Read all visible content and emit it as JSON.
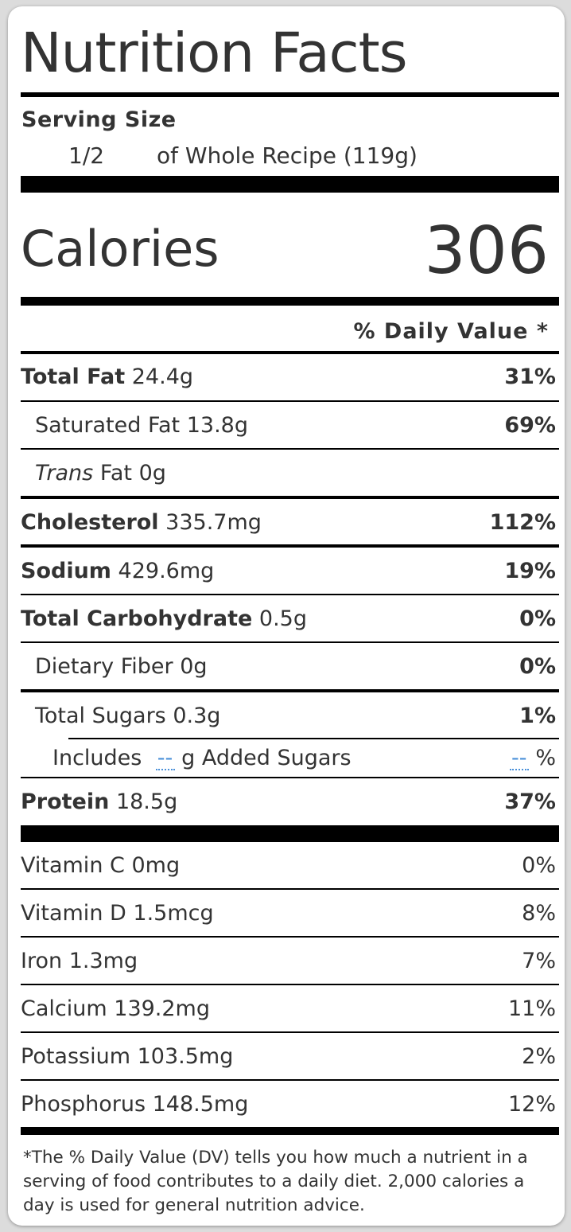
{
  "title": "Nutrition Facts",
  "serving": {
    "label": "Serving Size",
    "quantity": "1/2",
    "unit": "of Whole Recipe (119g)"
  },
  "calories": {
    "label": "Calories",
    "value": "306"
  },
  "dv_header": "% Daily Value *",
  "nutrients": {
    "total_fat": {
      "name": "Total Fat",
      "amount": "24.4g",
      "dv": "31%"
    },
    "saturated_fat": {
      "name": "Saturated Fat",
      "amount": "13.8g",
      "dv": "69%"
    },
    "trans_fat": {
      "name_italic": "Trans",
      "name": "Fat",
      "amount": "0g"
    },
    "cholesterol": {
      "name": "Cholesterol",
      "amount": "335.7mg",
      "dv": "112%"
    },
    "sodium": {
      "name": "Sodium",
      "amount": "429.6mg",
      "dv": "19%"
    },
    "total_carbohydrate": {
      "name": "Total Carbohydrate",
      "amount": "0.5g",
      "dv": "0%"
    },
    "dietary_fiber": {
      "name": "Dietary Fiber",
      "amount": "0g",
      "dv": "0%"
    },
    "total_sugars": {
      "name": "Total Sugars",
      "amount": "0.3g",
      "dv": "1%"
    },
    "added_sugars": {
      "prefix": "Includes",
      "amount": "--",
      "suffix": "g Added Sugars",
      "dv": "--",
      "dv_suffix": "%"
    },
    "protein": {
      "name": "Protein",
      "amount": "18.5g",
      "dv": "37%"
    }
  },
  "vitamins": [
    {
      "name": "Vitamin C",
      "amount": "0mg",
      "dv": "0%"
    },
    {
      "name": "Vitamin D",
      "amount": "1.5mcg",
      "dv": "8%"
    },
    {
      "name": "Iron",
      "amount": "1.3mg",
      "dv": "7%"
    },
    {
      "name": "Calcium",
      "amount": "139.2mg",
      "dv": "11%"
    },
    {
      "name": "Potassium",
      "amount": "103.5mg",
      "dv": "2%"
    },
    {
      "name": "Phosphorus",
      "amount": "148.5mg",
      "dv": "12%"
    }
  ],
  "footnote": "*The % Daily Value (DV) tells you how much a nutrient in a serving of food contributes to a daily diet. 2,000 calories a day is used for general nutrition advice.",
  "colors": {
    "text": "#333333",
    "rule": "#000000",
    "dash": "#4a90d9"
  }
}
